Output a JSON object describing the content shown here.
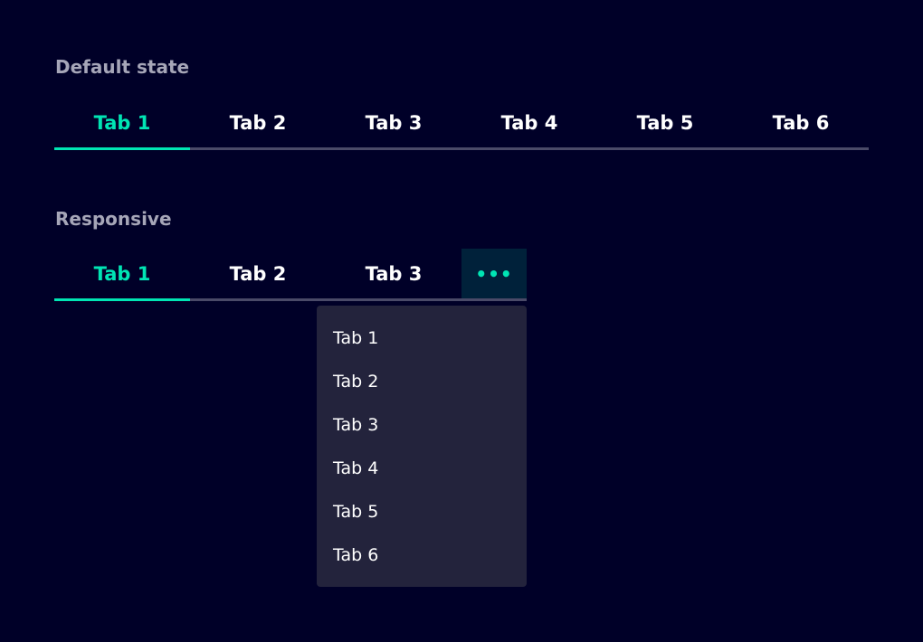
{
  "default": {
    "title": "Default state",
    "tabs": [
      "Tab 1",
      "Tab 2",
      "Tab 3",
      "Tab 4",
      "Tab 5",
      "Tab 6"
    ],
    "active": 0
  },
  "responsive": {
    "title": "Responsive",
    "tabs": [
      "Tab 1",
      "Tab 2",
      "Tab 3"
    ],
    "more": "•••",
    "active": 0,
    "menu": [
      "Tab 1",
      "Tab 2",
      "Tab 3",
      "Tab 4",
      "Tab 5",
      "Tab 6"
    ]
  },
  "colors": {
    "accent": "#00e5b4",
    "background": "#000028",
    "menu": "#23233c"
  }
}
